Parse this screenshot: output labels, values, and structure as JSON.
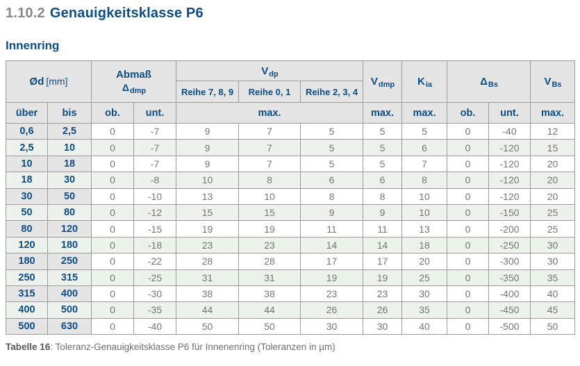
{
  "colors": {
    "accent_blue": "#0e4c84",
    "heading_number_gray": "#87888a",
    "header_bg_gray": "#e5e5e5",
    "row_alt_green": "#edf3ec",
    "data_text_gray": "#757575",
    "border_gray": "#9b9b9b"
  },
  "page": {
    "section_number": "1.10.2",
    "section_title": "Genauigkeitsklasse P6",
    "subtitle": "Innenring",
    "caption_label": "Tabelle 16",
    "caption_rest": ": Toleranz-Genauigkeitsklasse P6 für Innenenring (Toleranzen in µm)"
  },
  "table": {
    "header": {
      "diameter_symbol": "Ød",
      "diameter_unit": "[mm]",
      "abmass_label": "Abmaß",
      "abmass_symbol": "Δ",
      "abmass_subscript": "dmp",
      "vdp_symbol": "V",
      "vdp_subscript": "dp",
      "reihe_columns": [
        "Reihe 7, 8, 9",
        "Reihe 0, 1",
        "Reihe 2, 3, 4"
      ],
      "vdmp_symbol": "V",
      "vdmp_subscript": "dmp",
      "kia_symbol": "K",
      "kia_subscript": "ia",
      "delta_bs_symbol": "Δ",
      "delta_bs_subscript": "Bs",
      "vbs_symbol": "V",
      "vbs_subscript": "Bs",
      "sub_headers": [
        "über",
        "bis",
        "ob.",
        "unt.",
        "max.",
        "max.",
        "max.",
        "ob.",
        "unt.",
        "max."
      ]
    },
    "rows": [
      [
        "0,6",
        "2,5",
        "0",
        "-7",
        "9",
        "7",
        "5",
        "5",
        "5",
        "0",
        "-40",
        "12"
      ],
      [
        "2,5",
        "10",
        "0",
        "-7",
        "9",
        "7",
        "5",
        "5",
        "6",
        "0",
        "-120",
        "15"
      ],
      [
        "10",
        "18",
        "0",
        "-7",
        "9",
        "7",
        "5",
        "5",
        "7",
        "0",
        "-120",
        "20"
      ],
      [
        "18",
        "30",
        "0",
        "-8",
        "10",
        "8",
        "6",
        "6",
        "8",
        "0",
        "-120",
        "20"
      ],
      [
        "30",
        "50",
        "0",
        "-10",
        "13",
        "10",
        "8",
        "8",
        "10",
        "0",
        "-120",
        "20"
      ],
      [
        "50",
        "80",
        "0",
        "-12",
        "15",
        "15",
        "9",
        "9",
        "10",
        "0",
        "-150",
        "25"
      ],
      [
        "80",
        "120",
        "0",
        "-15",
        "19",
        "19",
        "11",
        "11",
        "13",
        "0",
        "-200",
        "25"
      ],
      [
        "120",
        "180",
        "0",
        "-18",
        "23",
        "23",
        "14",
        "14",
        "18",
        "0",
        "-250",
        "30"
      ],
      [
        "180",
        "250",
        "0",
        "-22",
        "28",
        "28",
        "17",
        "17",
        "20",
        "0",
        "-300",
        "30"
      ],
      [
        "250",
        "315",
        "0",
        "-25",
        "31",
        "31",
        "19",
        "19",
        "25",
        "0",
        "-350",
        "35"
      ],
      [
        "315",
        "400",
        "0",
        "-30",
        "38",
        "38",
        "23",
        "23",
        "30",
        "0",
        "-400",
        "40"
      ],
      [
        "400",
        "500",
        "0",
        "-35",
        "44",
        "44",
        "26",
        "26",
        "35",
        "0",
        "-450",
        "45"
      ],
      [
        "500",
        "630",
        "0",
        "-40",
        "50",
        "50",
        "30",
        "30",
        "40",
        "0",
        "-500",
        "50"
      ]
    ]
  }
}
